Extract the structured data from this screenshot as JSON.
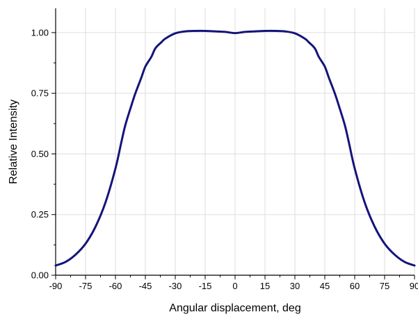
{
  "chart_data": {
    "type": "line",
    "title": "",
    "xlabel": "Angular displacement, deg",
    "ylabel": "Relative Intensity",
    "xlim": [
      -90,
      90
    ],
    "ylim": [
      0,
      1.1
    ],
    "x_ticks": [
      -90,
      -75,
      -60,
      -45,
      -30,
      -15,
      0,
      15,
      30,
      45,
      60,
      75,
      90
    ],
    "x_tick_labels": [
      "-90",
      "-75",
      "-60",
      "-45",
      "-30",
      "-15",
      "0",
      "15",
      "30",
      "45",
      "60",
      "75",
      "90"
    ],
    "y_ticks": [
      0,
      0.25,
      0.5,
      0.75,
      1.0
    ],
    "y_tick_labels": [
      "0.00",
      "0.25",
      "0.50",
      "0.75",
      "1.00"
    ],
    "grid": true,
    "legend": "none",
    "line_color": "#14147a",
    "series": [
      {
        "x": [
          -90,
          -85,
          -80,
          -75,
          -70,
          -65,
          -60,
          -57,
          -55,
          -52,
          -50,
          -47,
          -45,
          -42,
          -40,
          -37,
          -35,
          -30,
          -25,
          -20,
          -15,
          -10,
          -5,
          0,
          5,
          10,
          15,
          20,
          25,
          30,
          35,
          37,
          40,
          42,
          45,
          47,
          50,
          52,
          55,
          57,
          60,
          65,
          70,
          75,
          80,
          85,
          90
        ],
        "values": [
          0.04,
          0.055,
          0.085,
          0.13,
          0.2,
          0.3,
          0.44,
          0.55,
          0.62,
          0.7,
          0.75,
          0.815,
          0.86,
          0.9,
          0.935,
          0.96,
          0.975,
          0.997,
          1.005,
          1.007,
          1.007,
          1.005,
          1.003,
          0.998,
          1.003,
          1.005,
          1.007,
          1.007,
          1.005,
          0.997,
          0.975,
          0.96,
          0.935,
          0.9,
          0.86,
          0.815,
          0.75,
          0.7,
          0.62,
          0.55,
          0.44,
          0.3,
          0.2,
          0.13,
          0.085,
          0.055,
          0.04
        ]
      }
    ]
  }
}
